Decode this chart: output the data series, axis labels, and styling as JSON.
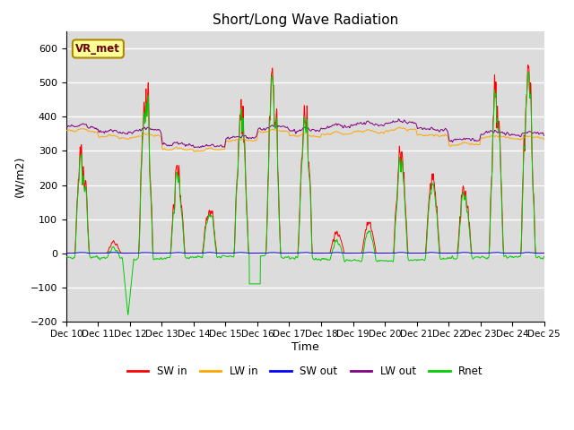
{
  "title": "Short/Long Wave Radiation",
  "xlabel": "Time",
  "ylabel": "(W/m2)",
  "ylim": [
    -200,
    650
  ],
  "yticks": [
    -200,
    -100,
    0,
    100,
    200,
    300,
    400,
    500,
    600
  ],
  "x_labels": [
    "Dec 10",
    "Dec 11",
    "Dec 12",
    "Dec 13",
    "Dec 14",
    "Dec 15",
    "Dec 16",
    "Dec 17",
    "Dec 18",
    "Dec 19",
    "Dec 20",
    "Dec 21",
    "Dec 22",
    "Dec 23",
    "Dec 24",
    "Dec 25"
  ],
  "n_days": 15,
  "points_per_day": 144,
  "colors": {
    "SW_in": "#ff0000",
    "LW_in": "#ffa500",
    "SW_out": "#0000ff",
    "LW_out": "#800080",
    "Rnet": "#00cc00"
  },
  "legend_labels": [
    "SW in",
    "LW in",
    "SW out",
    "LW out",
    "Rnet"
  ],
  "annotation_text": "VR_met",
  "background_color": "#dcdcdc",
  "grid_color": "#ffffff"
}
